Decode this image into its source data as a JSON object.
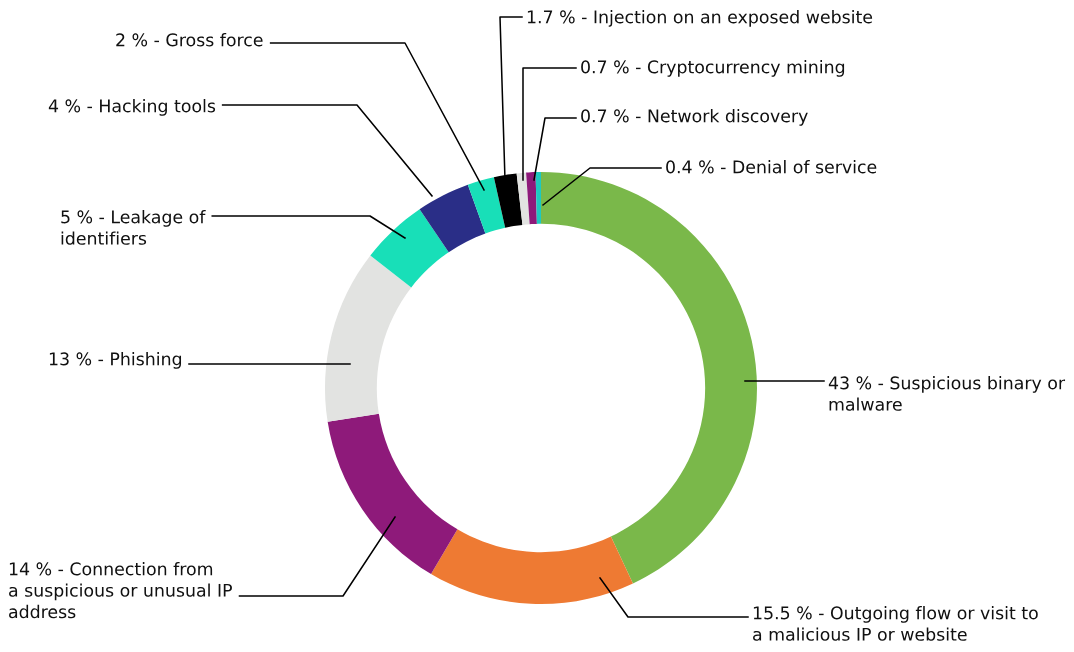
{
  "chart_data": {
    "type": "donut",
    "categories": [
      "Suspicious binary or\nmalware",
      "Outgoing flow or visit to\na malicious IP or website",
      "Connection from\na suspicious or unusual IP\naddress",
      "Phishing",
      "Leakage of\nidentifiers",
      "Hacking tools",
      "Gross force",
      "Injection on an exposed website",
      "Cryptocurrency mining",
      "Network discovery",
      "Denial of service"
    ],
    "values": [
      43,
      15.5,
      14,
      13,
      5,
      4,
      2,
      1.7,
      0.7,
      0.7,
      0.4
    ],
    "value_labels": [
      "43 % -",
      "15.5 % -",
      "14 % -",
      "13 % -",
      "5 % -",
      "4 % -",
      "2 % -",
      "1.7 % -",
      "0.7 % -",
      "0.7 % -",
      "0.4 % -"
    ],
    "colors": [
      "#7ab84a",
      "#ee7a33",
      "#8e1a7a",
      "#e2e3e1",
      "#18dfb8",
      "#2a2e87",
      "#18dfb8",
      "#000000",
      "#e2e3e1",
      "#8e1a7a",
      "#1ec9c0"
    ],
    "legend": false
  }
}
